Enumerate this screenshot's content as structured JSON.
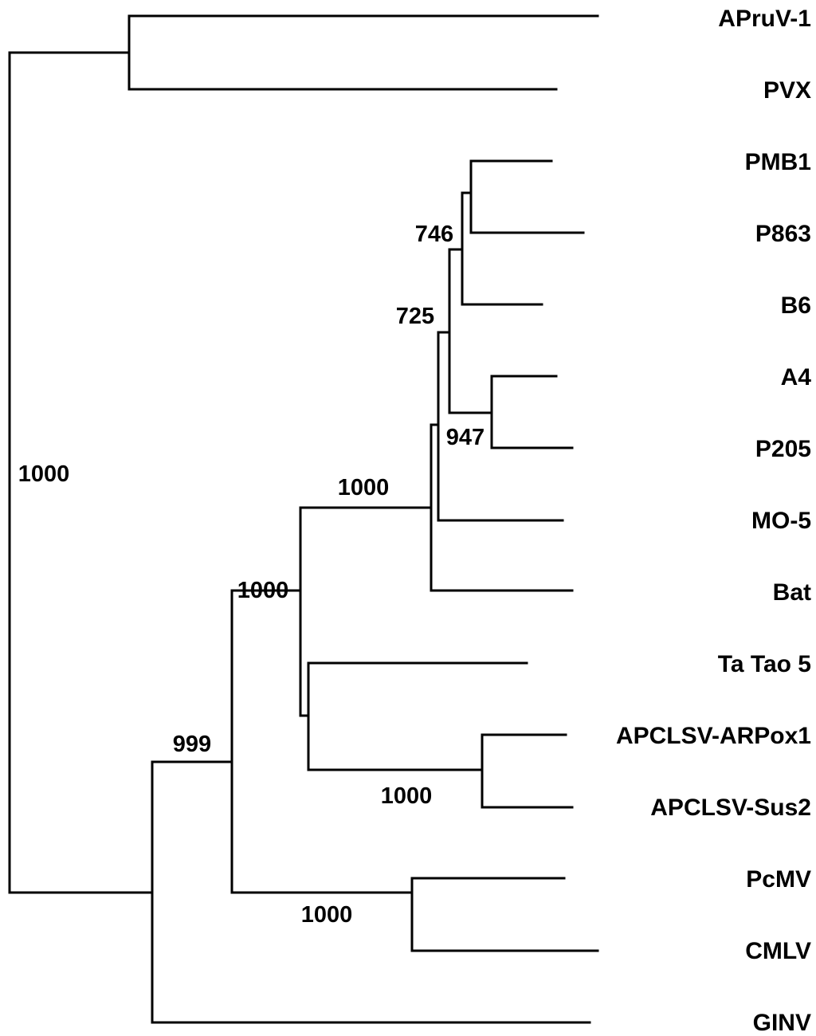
{
  "figure": {
    "type": "phylogenetic-tree",
    "line_color": "#000000",
    "taxa": [
      "APruV-1",
      "PVX",
      "PMB1",
      "P863",
      "B6",
      "A4",
      "P205",
      "MO-5",
      "Bat",
      "Ta Tao 5",
      "APCLSV-ARPox1",
      "APCLSV-Sus2",
      "PcMV",
      "CMLV",
      "GINV"
    ],
    "bootstrap_values": [
      "1000",
      "746",
      "725",
      "947",
      "1000",
      "1000",
      "999",
      "1000",
      "1000"
    ]
  }
}
